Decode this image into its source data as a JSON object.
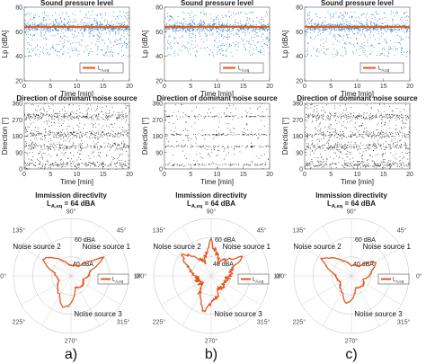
{
  "panels": [
    {
      "letter": "a)",
      "spl": {
        "title": "Sound pressure level",
        "mean": 64
      },
      "dir": {
        "title": "Direction of dominant noise source",
        "bands": [
          25,
          125,
          190,
          290
        ],
        "spread": 1.0
      },
      "polar": {
        "title": "Immission directivity",
        "subtitle_main": "L",
        "subtitle_sub": "A,eq",
        "subtitle_rest": " = 64 dBA",
        "directivity": [
          [
            0,
            44
          ],
          [
            15,
            46
          ],
          [
            25,
            55
          ],
          [
            30,
            60
          ],
          [
            35,
            52
          ],
          [
            50,
            40
          ],
          [
            80,
            38
          ],
          [
            100,
            39
          ],
          [
            120,
            44
          ],
          [
            140,
            53
          ],
          [
            150,
            56
          ],
          [
            155,
            52
          ],
          [
            170,
            43
          ],
          [
            200,
            40
          ],
          [
            240,
            48
          ],
          [
            255,
            56
          ],
          [
            265,
            54
          ],
          [
            290,
            40
          ],
          [
            320,
            42
          ],
          [
            345,
            40
          ]
        ],
        "sources": [
          {
            "label": "Noise source 1",
            "angle": 30
          },
          {
            "label": "Noise source 2",
            "angle": 150
          },
          {
            "label": "Noise source 3",
            "angle": 260
          }
        ]
      }
    },
    {
      "letter": "b)",
      "spl": {
        "title": "Sound pressure level",
        "mean": 64
      },
      "dir": {
        "title": "Direction of dominant noise source",
        "bands": [
          25,
          125,
          190,
          290
        ],
        "spread": 0.5
      },
      "polar": {
        "title": "Immission directivity",
        "subtitle_main": "L",
        "subtitle_sub": "A,eq",
        "subtitle_rest": " = 64 dBA",
        "directivity": [
          [
            0,
            44
          ],
          [
            20,
            47
          ],
          [
            28,
            56
          ],
          [
            32,
            60
          ],
          [
            38,
            52
          ],
          [
            60,
            42
          ],
          [
            85,
            52
          ],
          [
            90,
            58
          ],
          [
            95,
            52
          ],
          [
            115,
            42
          ],
          [
            135,
            52
          ],
          [
            145,
            58
          ],
          [
            155,
            52
          ],
          [
            180,
            42
          ],
          [
            220,
            40
          ],
          [
            250,
            52
          ],
          [
            258,
            58
          ],
          [
            268,
            52
          ],
          [
            300,
            42
          ],
          [
            340,
            42
          ]
        ],
        "sources": [
          {
            "label": "Noise source 1",
            "angle": 30
          },
          {
            "label": "Noise source 2",
            "angle": 150
          },
          {
            "label": "Noise source 3",
            "angle": 260
          }
        ]
      }
    },
    {
      "letter": "c)",
      "spl": {
        "title": "Sound pressure level",
        "mean": 64
      },
      "dir": {
        "title": "Direction of dominant noise source",
        "bands": [
          25,
          125,
          190,
          290
        ],
        "spread": 1.0
      },
      "polar": {
        "title": "Immission directivity",
        "subtitle_main": "L",
        "subtitle_sub": "A,eq",
        "subtitle_rest": " = 64 dBA",
        "directivity": [
          [
            0,
            44
          ],
          [
            15,
            47
          ],
          [
            28,
            52
          ],
          [
            35,
            50
          ],
          [
            50,
            40
          ],
          [
            90,
            38
          ],
          [
            120,
            44
          ],
          [
            140,
            52
          ],
          [
            150,
            58
          ],
          [
            155,
            53
          ],
          [
            175,
            43
          ],
          [
            210,
            40
          ],
          [
            245,
            46
          ],
          [
            258,
            52
          ],
          [
            268,
            50
          ],
          [
            290,
            40
          ],
          [
            320,
            42
          ],
          [
            345,
            40
          ]
        ],
        "sources": [
          {
            "label": "Noise source 1",
            "angle": 30
          },
          {
            "label": "Noise source 2",
            "angle": 150
          },
          {
            "label": "Noise source 3",
            "angle": 260
          }
        ]
      }
    }
  ],
  "spl_axes": {
    "ylabel": "Lp [dBA]",
    "xlabel": "Time [min]",
    "yticks": [
      "20",
      "40",
      "60",
      "80"
    ],
    "xticks": [
      "0",
      "5",
      "10",
      "15",
      "20"
    ],
    "legend_main": "L",
    "legend_sub": "A,eq"
  },
  "dir_axes": {
    "ylabel": "Direction [°]",
    "xlabel": "Time [min]",
    "yticks": [
      "0",
      "90",
      "180",
      "270",
      "360"
    ],
    "xticks": [
      "0",
      "5",
      "10",
      "15",
      "20"
    ]
  },
  "polar_axes": {
    "angle_labels": [
      "0°",
      "45°",
      "90°",
      "135°",
      "180°",
      "225°",
      "270°",
      "315°"
    ],
    "ring_labels": [
      "40 dBA",
      "60 dBA"
    ],
    "legend_main": "L",
    "legend_sub": "A,eq"
  },
  "chart_data": [
    {
      "type": "scatter",
      "panel": "a)",
      "title": "Sound pressure level",
      "xlabel": "Time [min]",
      "ylabel": "Lp [dBA]",
      "xlim": [
        0,
        20
      ],
      "ylim": [
        20,
        80
      ],
      "series": [
        {
          "name": "LA,eq",
          "type": "line",
          "x": [
            0,
            20
          ],
          "y": [
            64,
            64
          ]
        }
      ]
    },
    {
      "type": "scatter",
      "panel": "a)",
      "title": "Direction of dominant noise source",
      "xlabel": "Time [min]",
      "ylabel": "Direction [°]",
      "xlim": [
        0,
        20
      ],
      "ylim": [
        0,
        360
      ]
    },
    {
      "type": "line",
      "panel": "a)",
      "title": "Immission directivity",
      "subtitle": "LA,eq = 64 dBA",
      "radial_labels": [
        "40 dBA",
        "60 dBA"
      ],
      "series": [
        {
          "name": "LA,eq",
          "theta_deg": [
            0,
            15,
            25,
            30,
            35,
            50,
            80,
            100,
            120,
            140,
            150,
            155,
            170,
            200,
            240,
            255,
            265,
            290,
            320,
            345
          ],
          "r_dBA": [
            44,
            46,
            55,
            60,
            52,
            40,
            38,
            39,
            44,
            53,
            56,
            52,
            43,
            40,
            48,
            56,
            54,
            40,
            42,
            40
          ]
        }
      ]
    },
    {
      "type": "scatter",
      "panel": "b)",
      "title": "Sound pressure level",
      "xlabel": "Time [min]",
      "ylabel": "Lp [dBA]",
      "xlim": [
        0,
        20
      ],
      "ylim": [
        20,
        80
      ],
      "series": [
        {
          "name": "LA,eq",
          "type": "line",
          "x": [
            0,
            20
          ],
          "y": [
            64,
            64
          ]
        }
      ]
    },
    {
      "type": "scatter",
      "panel": "b)",
      "title": "Direction of dominant noise source",
      "xlabel": "Time [min]",
      "ylabel": "Direction [°]",
      "xlim": [
        0,
        20
      ],
      "ylim": [
        0,
        360
      ]
    },
    {
      "type": "line",
      "panel": "b)",
      "title": "Immission directivity",
      "subtitle": "LA,eq = 64 dBA",
      "radial_labels": [
        "40 dBA",
        "60 dBA"
      ],
      "series": [
        {
          "name": "LA,eq",
          "theta_deg": [
            0,
            20,
            28,
            32,
            38,
            60,
            85,
            90,
            95,
            115,
            135,
            145,
            155,
            180,
            220,
            250,
            258,
            268,
            300,
            340
          ],
          "r_dBA": [
            44,
            47,
            56,
            60,
            52,
            42,
            52,
            58,
            52,
            42,
            52,
            58,
            52,
            42,
            40,
            52,
            58,
            52,
            42,
            42
          ]
        }
      ]
    },
    {
      "type": "scatter",
      "panel": "c)",
      "title": "Sound pressure level",
      "xlabel": "Time [min]",
      "ylabel": "Lp [dBA]",
      "xlim": [
        0,
        20
      ],
      "ylim": [
        20,
        80
      ],
      "series": [
        {
          "name": "LA,eq",
          "type": "line",
          "x": [
            0,
            20
          ],
          "y": [
            64,
            64
          ]
        }
      ]
    },
    {
      "type": "scatter",
      "panel": "c)",
      "title": "Direction of dominant noise source",
      "xlabel": "Time [min]",
      "ylabel": "Direction [°]",
      "xlim": [
        0,
        20
      ],
      "ylim": [
        0,
        360
      ]
    },
    {
      "type": "line",
      "panel": "c)",
      "title": "Immission directivity",
      "subtitle": "LA,eq = 64 dBA",
      "radial_labels": [
        "40 dBA",
        "60 dBA"
      ],
      "series": [
        {
          "name": "LA,eq",
          "theta_deg": [
            0,
            15,
            28,
            35,
            50,
            90,
            120,
            140,
            150,
            155,
            175,
            210,
            245,
            258,
            268,
            290,
            320,
            345
          ],
          "r_dBA": [
            44,
            47,
            52,
            50,
            40,
            38,
            44,
            52,
            58,
            53,
            43,
            40,
            46,
            52,
            50,
            40,
            42,
            40
          ]
        }
      ]
    }
  ]
}
